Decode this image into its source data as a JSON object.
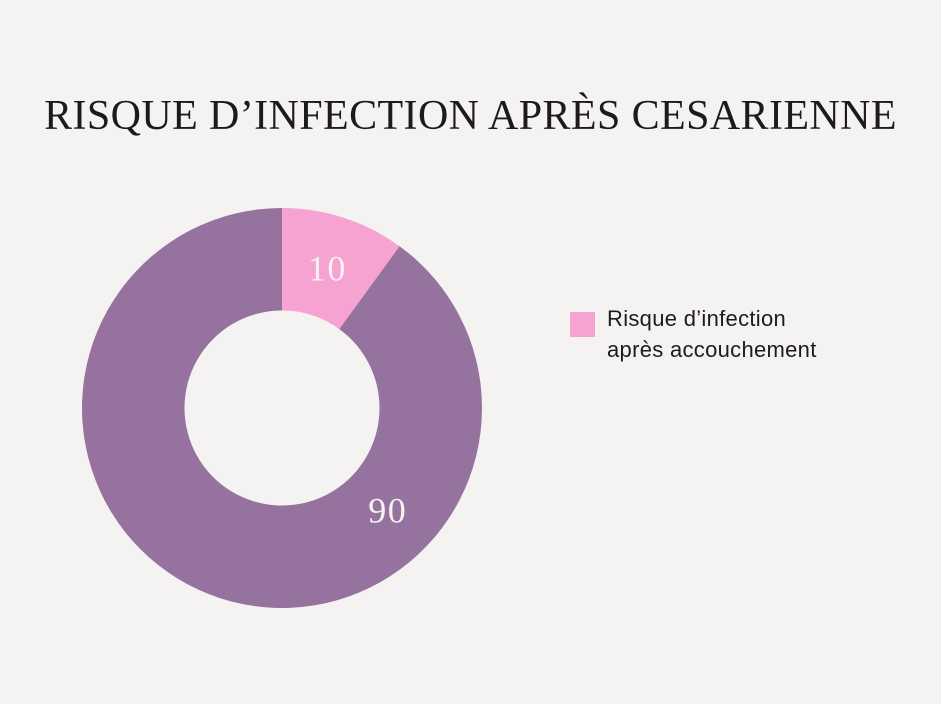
{
  "page": {
    "background_color": "#F5F3F1",
    "title_color": "#1D1A1B"
  },
  "chart_data": {
    "type": "pie",
    "subtype": "donut",
    "title": "RISQUE D’INFECTION APRÈS CESARIENNE",
    "segments": [
      {
        "label": "Risque d’infection après accouchement",
        "value": 10,
        "color": "#F6A3D1"
      },
      {
        "label": "",
        "value": 90,
        "color": "#96739E"
      }
    ],
    "total": 100,
    "start_angle_deg": 0,
    "clockwise": true,
    "inner_radius_ratio": 0.4875,
    "value_label_color": "#F7F2F4",
    "value_label_angles_deg": [
      18,
      134
    ],
    "value_label_radius_ratio": 0.735,
    "legend": {
      "position": "right",
      "swatch_color": "#F6A3D1",
      "text_color": "#1E1B1C",
      "lines": [
        "Risque d’infection",
        "après accouchement"
      ]
    }
  }
}
